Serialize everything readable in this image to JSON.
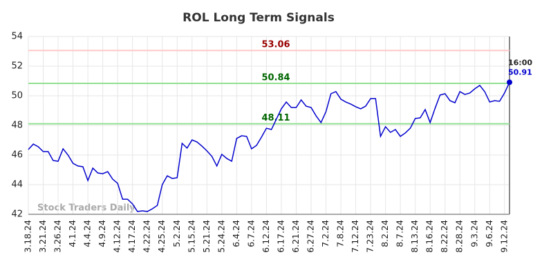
{
  "chart_data": {
    "type": "line",
    "title": "ROL Long Term Signals",
    "categories": [
      "3.18.24",
      null,
      null,
      "3.21.24",
      null,
      null,
      "3.26.24",
      null,
      null,
      "4.1.24",
      null,
      null,
      "4.4.24",
      null,
      null,
      "4.9.24",
      null,
      null,
      "4.12.24",
      null,
      null,
      "4.17.24",
      null,
      null,
      "4.22.24",
      null,
      null,
      "4.25.24",
      null,
      null,
      "5.2.24",
      null,
      null,
      "5.15.24",
      null,
      null,
      "5.21.24",
      null,
      null,
      "5.24.24",
      null,
      null,
      "6.4.24",
      null,
      null,
      "6.7.24",
      null,
      null,
      "6.12.24",
      null,
      null,
      "6.17.24",
      null,
      null,
      "6.21.24",
      null,
      null,
      "6.27.24",
      null,
      null,
      "7.2.24",
      null,
      null,
      "7.8.24",
      null,
      null,
      "7.12.24",
      null,
      null,
      "7.23.24",
      null,
      null,
      "8.2.24",
      null,
      null,
      "8.7.24",
      null,
      null,
      "8.13.24",
      null,
      null,
      "8.16.24",
      null,
      null,
      "8.22.24",
      null,
      null,
      "8.28.24",
      null,
      null,
      "9.3.24",
      null,
      null,
      "9.6.24",
      null,
      null,
      "9.12.24",
      null
    ],
    "series": [
      {
        "name": "ROL",
        "color": "#0000cc",
        "values": [
          46.37,
          46.74,
          46.56,
          46.23,
          46.23,
          45.63,
          45.58,
          46.42,
          46.0,
          45.44,
          45.26,
          45.21,
          44.28,
          45.12,
          44.79,
          44.74,
          44.88,
          44.37,
          44.09,
          43.02,
          43.02,
          42.7,
          42.19,
          42.23,
          42.19,
          42.37,
          42.6,
          44.0,
          44.6,
          44.42,
          44.47,
          46.79,
          46.47,
          47.02,
          46.88,
          46.6,
          46.28,
          45.91,
          45.26,
          46.05,
          45.77,
          45.58,
          47.12,
          47.3,
          47.26,
          46.42,
          46.65,
          47.21,
          47.81,
          47.72,
          48.42,
          49.12,
          49.58,
          49.21,
          49.21,
          49.72,
          49.3,
          49.21,
          48.65,
          48.19,
          48.93,
          50.14,
          50.28,
          49.77,
          49.58,
          49.44,
          49.26,
          49.12,
          49.3,
          49.81,
          49.81,
          47.26,
          47.91,
          47.53,
          47.72,
          47.26,
          47.49,
          47.81,
          48.47,
          48.51,
          49.07,
          48.19,
          49.16,
          50.05,
          50.14,
          49.67,
          49.53,
          50.28,
          50.09,
          50.19,
          50.47,
          50.7,
          50.28,
          49.58,
          49.67,
          49.63,
          50.19,
          50.91
        ]
      }
    ],
    "levels": [
      {
        "value": 53.06,
        "line_color": "#ffc8c8",
        "text_color": "#990000"
      },
      {
        "value": 50.84,
        "line_color": "#90e090",
        "text_color": "#006600"
      },
      {
        "value": 48.11,
        "line_color": "#90e090",
        "text_color": "#006600"
      }
    ],
    "last_time": "16:00",
    "watermark": "Stock Traders Daily",
    "ylim": [
      42,
      54
    ],
    "yticks": [
      42,
      44,
      46,
      48,
      50,
      52,
      54
    ],
    "grid": true
  }
}
